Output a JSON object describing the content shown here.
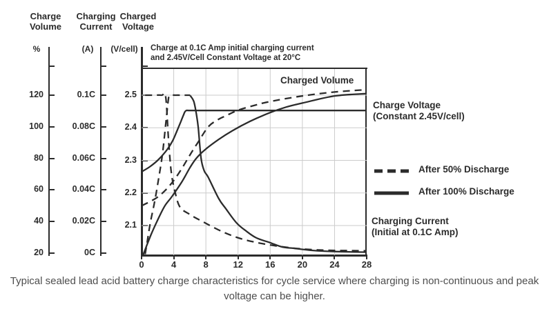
{
  "chart_data": {
    "type": "line",
    "title": "Charge at 0.1C Amp initial charging current and 2.45V/Cell Constant Voltage at 20°C",
    "title_lines": [
      "Charge at 0.1C Amp initial charging current",
      "and 2.45V/Cell Constant Voltage at 20°C"
    ],
    "grid": true,
    "colors": {
      "ink": "#2b2b2b",
      "grid": "#cbcbcb",
      "caption": "#4d4d4d"
    },
    "x_axis": {
      "range": [
        0,
        28
      ],
      "ticks": [
        {
          "label": "0",
          "value": 0
        },
        {
          "label": "4",
          "value": 4
        },
        {
          "label": "8",
          "value": 8
        },
        {
          "label": "12",
          "value": 12
        },
        {
          "label": "16",
          "value": 16
        },
        {
          "label": "20",
          "value": 20
        },
        {
          "label": "24",
          "value": 24
        },
        {
          "label": "28",
          "value": 28
        }
      ]
    },
    "y_axes": [
      {
        "id": "volume",
        "header_lines": [
          "Charge",
          "Volume"
        ],
        "unit": "%",
        "range": [
          20,
          120
        ],
        "ticks": [
          {
            "label": "120",
            "value": 120
          },
          {
            "label": "100",
            "value": 100
          },
          {
            "label": "80",
            "value": 80
          },
          {
            "label": "60",
            "value": 60
          },
          {
            "label": "40",
            "value": 40
          },
          {
            "label": "20",
            "value": 20
          }
        ]
      },
      {
        "id": "current",
        "header_lines": [
          "Charging",
          "Current"
        ],
        "unit": "(A)",
        "range": [
          0,
          0.1
        ],
        "ticks": [
          {
            "label": "0.1C",
            "value": 0.1
          },
          {
            "label": "0.08C",
            "value": 0.08
          },
          {
            "label": "0.06C",
            "value": 0.06
          },
          {
            "label": "0.04C",
            "value": 0.04
          },
          {
            "label": "0.02C",
            "value": 0.02
          },
          {
            "label": "0C",
            "value": 0
          }
        ]
      },
      {
        "id": "voltage",
        "header_lines": [
          "Charged",
          "Voltage"
        ],
        "unit": "(V/cell)",
        "range": [
          2.0,
          2.55
        ],
        "ticks": [
          {
            "label": "2.5",
            "value": 2.5
          },
          {
            "label": "2.4",
            "value": 2.4
          },
          {
            "label": "2.3",
            "value": 2.3
          },
          {
            "label": "2.2",
            "value": 2.2
          },
          {
            "label": "2.1",
            "value": 2.1
          }
        ]
      }
    ],
    "series": [
      {
        "name": "Charged Voltage - After 50% Discharge",
        "axis": "voltage",
        "style": "dashed",
        "points": [
          [
            0.45,
            2.012
          ],
          [
            0.7,
            2.05
          ],
          [
            1.1,
            2.11
          ],
          [
            1.6,
            2.17
          ],
          [
            2.1,
            2.24
          ],
          [
            2.6,
            2.32
          ],
          [
            3.0,
            2.41
          ],
          [
            3.3,
            2.48
          ],
          [
            3.5,
            2.499
          ],
          [
            4.2,
            2.5
          ],
          [
            5.2,
            2.5
          ],
          [
            6.05,
            2.5
          ]
        ]
      },
      {
        "name": "Charged Voltage - After 100% Discharge (Constant 2.45V/cell)",
        "axis": "voltage",
        "style": "solid",
        "points": [
          [
            0,
            2.265
          ],
          [
            1,
            2.28
          ],
          [
            2,
            2.3
          ],
          [
            3,
            2.327
          ],
          [
            3.8,
            2.357
          ],
          [
            4.4,
            2.39
          ],
          [
            4.9,
            2.42
          ],
          [
            5.2,
            2.438
          ],
          [
            5.5,
            2.452
          ],
          [
            6.2,
            2.453
          ],
          [
            10,
            2.453
          ],
          [
            18,
            2.453
          ],
          [
            28,
            2.453
          ]
        ]
      },
      {
        "name": "Charging Current - After 50% Discharge",
        "axis": "current",
        "style": "dashed",
        "points": [
          [
            0.45,
            0.1
          ],
          [
            1.5,
            0.1
          ],
          [
            2.5,
            0.1
          ],
          [
            3.0,
            0.099
          ],
          [
            3.35,
            0.072
          ],
          [
            3.7,
            0.051
          ],
          [
            4.2,
            0.038
          ],
          [
            4.8,
            0.029
          ],
          [
            6,
            0.0245
          ],
          [
            7.4,
            0.0205
          ],
          [
            10.3,
            0.013
          ],
          [
            13.2,
            0.008
          ],
          [
            17.5,
            0.004
          ],
          [
            22,
            0.002
          ],
          [
            28,
            0.0015
          ]
        ]
      },
      {
        "name": "Charging Current - After 100% Discharge",
        "axis": "current",
        "style": "solid",
        "points": [
          [
            6.05,
            0.0998
          ],
          [
            6.5,
            0.096
          ],
          [
            6.8,
            0.0885
          ],
          [
            7.05,
            0.0795
          ],
          [
            7.4,
            0.06
          ],
          [
            7.8,
            0.052
          ],
          [
            8.3,
            0.048
          ],
          [
            9.6,
            0.0345
          ],
          [
            10.5,
            0.028
          ],
          [
            11.8,
            0.0192
          ],
          [
            13,
            0.014
          ],
          [
            14.3,
            0.0096
          ],
          [
            16,
            0.0066
          ],
          [
            17.5,
            0.0039
          ],
          [
            19,
            0.003
          ],
          [
            21.3,
            0.0017
          ],
          [
            24,
            0.001
          ],
          [
            28,
            0.0006
          ]
        ]
      },
      {
        "name": "Charged Volume - After 50% Discharge",
        "axis": "volume",
        "style": "dashed",
        "points": [
          [
            0,
            50
          ],
          [
            1,
            52.5
          ],
          [
            2,
            55.5
          ],
          [
            3,
            60
          ],
          [
            4,
            66
          ],
          [
            5,
            73.5
          ],
          [
            6,
            82
          ],
          [
            7,
            90
          ],
          [
            8.3,
            100
          ],
          [
            9.5,
            104.5
          ],
          [
            10.5,
            107
          ],
          [
            12,
            110.5
          ],
          [
            14,
            113.5
          ],
          [
            16,
            116
          ],
          [
            20,
            119.5
          ],
          [
            24,
            122
          ],
          [
            28,
            123.5
          ]
        ]
      },
      {
        "name": "Charged Volume - After 100% Discharge",
        "axis": "volume",
        "style": "solid",
        "points": [
          [
            0.2,
            19
          ],
          [
            1.2,
            32
          ],
          [
            2.1,
            42
          ],
          [
            2.9,
            50
          ],
          [
            3.8,
            56
          ],
          [
            5,
            65
          ],
          [
            6,
            74
          ],
          [
            6.8,
            80
          ],
          [
            7.9,
            85.5
          ],
          [
            9.6,
            92
          ],
          [
            11.3,
            97.5
          ],
          [
            13.5,
            103.5
          ],
          [
            16,
            109
          ],
          [
            18,
            112.5
          ],
          [
            20,
            115
          ],
          [
            24,
            119.5
          ],
          [
            28,
            121
          ]
        ]
      }
    ],
    "legend": [
      {
        "style": "dashed",
        "label": "After 50% Discharge"
      },
      {
        "style": "solid",
        "label": "After 100% Discharge"
      }
    ],
    "annotations": {
      "charged_volume": "Charged Volume",
      "charge_voltage_lines": [
        "Charge Voltage",
        "(Constant 2.45V/cell)"
      ],
      "charging_current_lines": [
        "Charging Current",
        "(Initial at 0.1C Amp)"
      ]
    }
  },
  "caption_lines": [
    "Typical sealed lead acid battery charge characteristics for cycle service where charging is non-continuous and peak",
    "voltage can be higher."
  ]
}
